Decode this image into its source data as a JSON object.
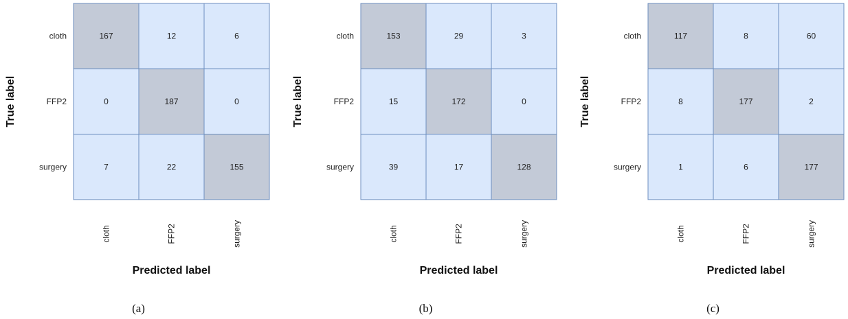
{
  "colors": {
    "diagonal_fill": "#c3cad7",
    "offdiag_fill": "#dae8fc",
    "cell_border": "#6c8ebf"
  },
  "chart_data": [
    {
      "type": "heatmap",
      "caption": "(a)",
      "row_labels": [
        "cloth",
        "FFP2",
        "surgery"
      ],
      "col_labels": [
        "cloth",
        "FFP2",
        "surgery"
      ],
      "ylabel": "True label",
      "xlabel": "Predicted label",
      "values": [
        [
          167,
          12,
          6
        ],
        [
          0,
          187,
          0
        ],
        [
          7,
          22,
          155
        ]
      ]
    },
    {
      "type": "heatmap",
      "caption": "(b)",
      "row_labels": [
        "cloth",
        "FFP2",
        "surgery"
      ],
      "col_labels": [
        "cloth",
        "FFP2",
        "surgery"
      ],
      "ylabel": "True label",
      "xlabel": "Predicted label",
      "values": [
        [
          153,
          29,
          3
        ],
        [
          15,
          172,
          0
        ],
        [
          39,
          17,
          128
        ]
      ]
    },
    {
      "type": "heatmap",
      "caption": "(c)",
      "row_labels": [
        "cloth",
        "FFP2",
        "surgery"
      ],
      "col_labels": [
        "cloth",
        "FFP2",
        "surgery"
      ],
      "ylabel": "True label",
      "xlabel": "Predicted label",
      "values": [
        [
          117,
          8,
          60
        ],
        [
          8,
          177,
          2
        ],
        [
          1,
          6,
          177
        ]
      ]
    }
  ]
}
